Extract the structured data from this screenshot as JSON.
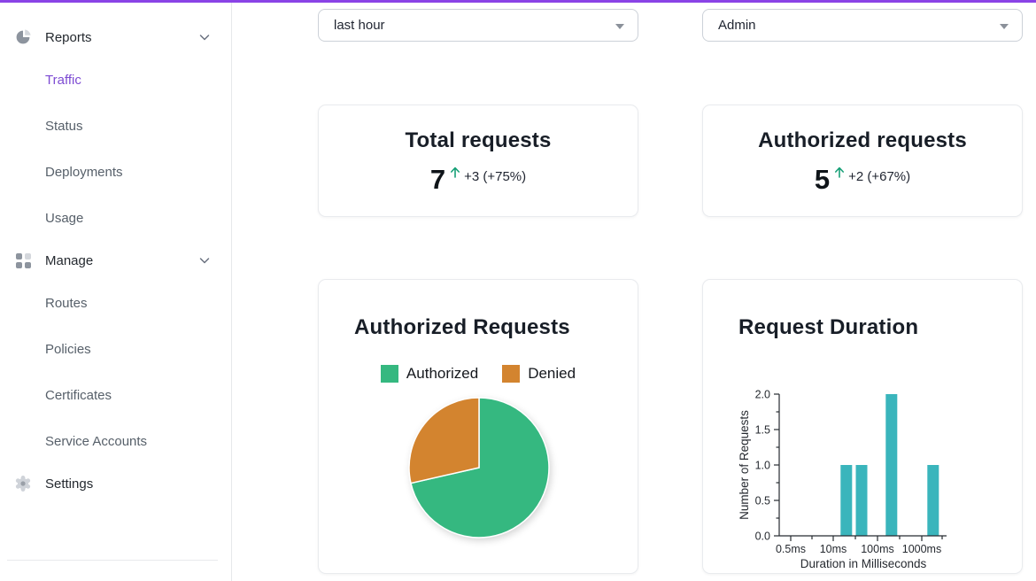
{
  "theme": {
    "accent_bar": "#8a43e6",
    "active_link": "#7d4bd3",
    "positive_green": "#17a077",
    "pie_green": "#35b880",
    "pie_orange": "#d3842f",
    "bar_teal": "#3ab5bc"
  },
  "topbar": {
    "time_range_value": "last hour",
    "account_value": "Admin"
  },
  "sidebar": {
    "active_item": "Traffic",
    "sections": [
      {
        "label": "Reports",
        "icon": "pie-chart-icon",
        "expanded": true,
        "items": [
          "Traffic",
          "Status",
          "Deployments",
          "Usage"
        ]
      },
      {
        "label": "Manage",
        "icon": "grid-icon",
        "expanded": true,
        "items": [
          "Routes",
          "Policies",
          "Certificates",
          "Service Accounts"
        ]
      },
      {
        "label": "Settings",
        "icon": "gear-icon",
        "items": []
      }
    ]
  },
  "stats": [
    {
      "title": "Total requests",
      "value": "7",
      "delta": "+3 (+75%)",
      "trend": "up"
    },
    {
      "title": "Authorized requests",
      "value": "5",
      "delta": "+2 (+67%)",
      "trend": "up"
    }
  ],
  "chart_data": [
    {
      "type": "pie",
      "title": "Authorized Requests",
      "labels": [
        "Authorized",
        "Denied"
      ],
      "values": [
        5,
        2
      ],
      "colors": [
        "#35b880",
        "#d3842f"
      ],
      "legend_position": "top",
      "start_angle_deg": -90,
      "direction": "clockwise"
    },
    {
      "type": "bar",
      "title": "Request Duration",
      "xlabel": "Duration in Milliseconds",
      "ylabel": "Number of Requests",
      "x_scale": "log",
      "x_tick_labels": [
        "0.5ms",
        "10ms",
        "100ms",
        "1000ms"
      ],
      "y_ticks": [
        0.0,
        0.5,
        1.0,
        1.5,
        2.0
      ],
      "ylim": [
        0,
        2
      ],
      "bars": [
        {
          "duration_ms": 20,
          "count": 1
        },
        {
          "duration_ms": 45,
          "count": 1
        },
        {
          "duration_ms": 220,
          "count": 2
        },
        {
          "duration_ms": 2000,
          "count": 1
        }
      ],
      "color": "#3ab5bc"
    }
  ]
}
